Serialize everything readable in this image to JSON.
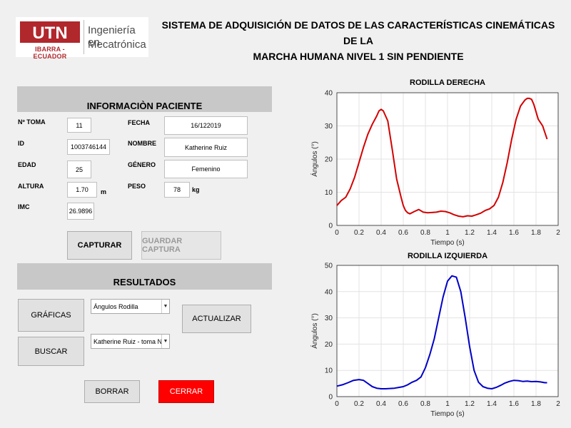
{
  "header": {
    "logo": {
      "mark": "UTN",
      "sub": "IBARRA - ECUADOR",
      "line1": "Ingeniería en",
      "line2": "Mecatrónica"
    },
    "title_line1": "SISTEMA DE ADQUISICIÓN DE DATOS DE LAS CARACTERÍSTICAS CINEMÁTICAS DE LA",
    "title_line2": "MARCHA HUMANA NIVEL 1 SIN PENDIENTE"
  },
  "patient": {
    "section_title": "INFORMACIÒN PACIENTE",
    "labels": {
      "toma": "Nº TOMA",
      "id": "ID",
      "edad": "EDAD",
      "altura": "ALTURA",
      "imc": "IMC",
      "fecha": "FECHA",
      "nombre": "NOMBRE",
      "genero": "GÉNERO",
      "peso": "PESO"
    },
    "values": {
      "toma": "11",
      "id": "1003746144",
      "edad": "25",
      "altura": "1.70",
      "imc": "26.9896",
      "fecha": "16/122019",
      "nombre": "Katherine Ruiz",
      "genero": "Femenino",
      "peso": "78"
    },
    "units": {
      "altura": "m",
      "peso": "kg"
    }
  },
  "buttons": {
    "capturar": "CAPTURAR",
    "guardar": "GUARDAR CAPTURA",
    "graficas": "GRÁFICAS",
    "buscar": "BUSCAR",
    "actualizar": "ACTUALIZAR",
    "borrar": "BORRAR",
    "cerrar": "CERRAR"
  },
  "results": {
    "section_title": "RESULTADOS",
    "select1": "Ángulos Rodilla",
    "select2": "Katherine Ruiz - toma No. ..."
  },
  "colors": {
    "right_knee": "#d40000",
    "left_knee": "#0000c8",
    "cerrar_bg": "#ff0000"
  },
  "icons": {
    "dropdown": "chevron-down-icon"
  },
  "chart_data": [
    {
      "type": "line",
      "title": "RODILLA DERECHA",
      "xlabel": "Tiempo (s)",
      "ylabel": "Ángulos (°)",
      "xlim": [
        0,
        2
      ],
      "ylim": [
        0,
        40
      ],
      "xticks": [
        0,
        0.2,
        0.4,
        0.6,
        0.8,
        1,
        1.2,
        1.4,
        1.6,
        1.8,
        2
      ],
      "yticks": [
        0,
        10,
        20,
        30,
        40
      ],
      "grid": true,
      "series": [
        {
          "x": [
            0,
            0.04,
            0.08,
            0.12,
            0.16,
            0.2,
            0.24,
            0.28,
            0.32,
            0.36,
            0.38,
            0.4,
            0.42,
            0.46,
            0.5,
            0.54,
            0.58,
            0.6,
            0.62,
            0.64,
            0.66,
            0.7,
            0.74,
            0.78,
            0.82,
            0.86,
            0.9,
            0.94,
            0.98,
            1.02,
            1.06,
            1.1,
            1.14,
            1.18,
            1.22,
            1.26,
            1.3,
            1.34,
            1.38,
            1.42,
            1.46,
            1.5,
            1.54,
            1.58,
            1.62,
            1.66,
            1.7,
            1.72,
            1.74,
            1.76,
            1.78,
            1.82,
            1.86,
            1.9
          ],
          "y": [
            6,
            7.5,
            8.5,
            11,
            14.5,
            19,
            23.5,
            27.5,
            30.5,
            33,
            34.5,
            35,
            34.5,
            31.5,
            23,
            14,
            8.5,
            6,
            4.5,
            3.8,
            3.5,
            4.2,
            4.8,
            4,
            3.8,
            3.9,
            4,
            4.3,
            4.2,
            3.8,
            3.2,
            2.8,
            2.6,
            2.9,
            2.8,
            3.2,
            3.7,
            4.5,
            5,
            6,
            8.5,
            13,
            19,
            26,
            32,
            36,
            37.8,
            38.3,
            38.3,
            38,
            36.5,
            32,
            30,
            26
          ]
        }
      ]
    },
    {
      "type": "line",
      "title": "RODILLA IZQUIERDA",
      "xlabel": "Tiempo (s)",
      "ylabel": "Ángulos (°)",
      "xlim": [
        0,
        2
      ],
      "ylim": [
        0,
        50
      ],
      "xticks": [
        0,
        0.2,
        0.4,
        0.6,
        0.8,
        1,
        1.2,
        1.4,
        1.6,
        1.8,
        2
      ],
      "yticks": [
        0,
        10,
        20,
        30,
        40,
        50
      ],
      "grid": true,
      "series": [
        {
          "x": [
            0,
            0.05,
            0.1,
            0.15,
            0.2,
            0.24,
            0.28,
            0.32,
            0.36,
            0.4,
            0.44,
            0.48,
            0.52,
            0.56,
            0.6,
            0.64,
            0.68,
            0.72,
            0.76,
            0.8,
            0.84,
            0.88,
            0.92,
            0.96,
            1,
            1.04,
            1.08,
            1.12,
            1.16,
            1.2,
            1.24,
            1.28,
            1.32,
            1.36,
            1.4,
            1.44,
            1.48,
            1.52,
            1.56,
            1.6,
            1.64,
            1.68,
            1.72,
            1.76,
            1.8,
            1.84,
            1.88,
            1.9
          ],
          "y": [
            4,
            4.5,
            5.3,
            6.2,
            6.5,
            6.2,
            5,
            3.8,
            3.2,
            3,
            3,
            3.1,
            3.2,
            3.5,
            3.8,
            4.5,
            5.5,
            6.2,
            7.5,
            11,
            16,
            22,
            30,
            38,
            44,
            46,
            45.5,
            40,
            30,
            19,
            10,
            5.5,
            3.8,
            3.2,
            3,
            3.5,
            4.3,
            5.2,
            5.8,
            6.2,
            6.1,
            5.8,
            5.9,
            5.7,
            5.8,
            5.6,
            5.3,
            5.3
          ]
        }
      ]
    }
  ]
}
